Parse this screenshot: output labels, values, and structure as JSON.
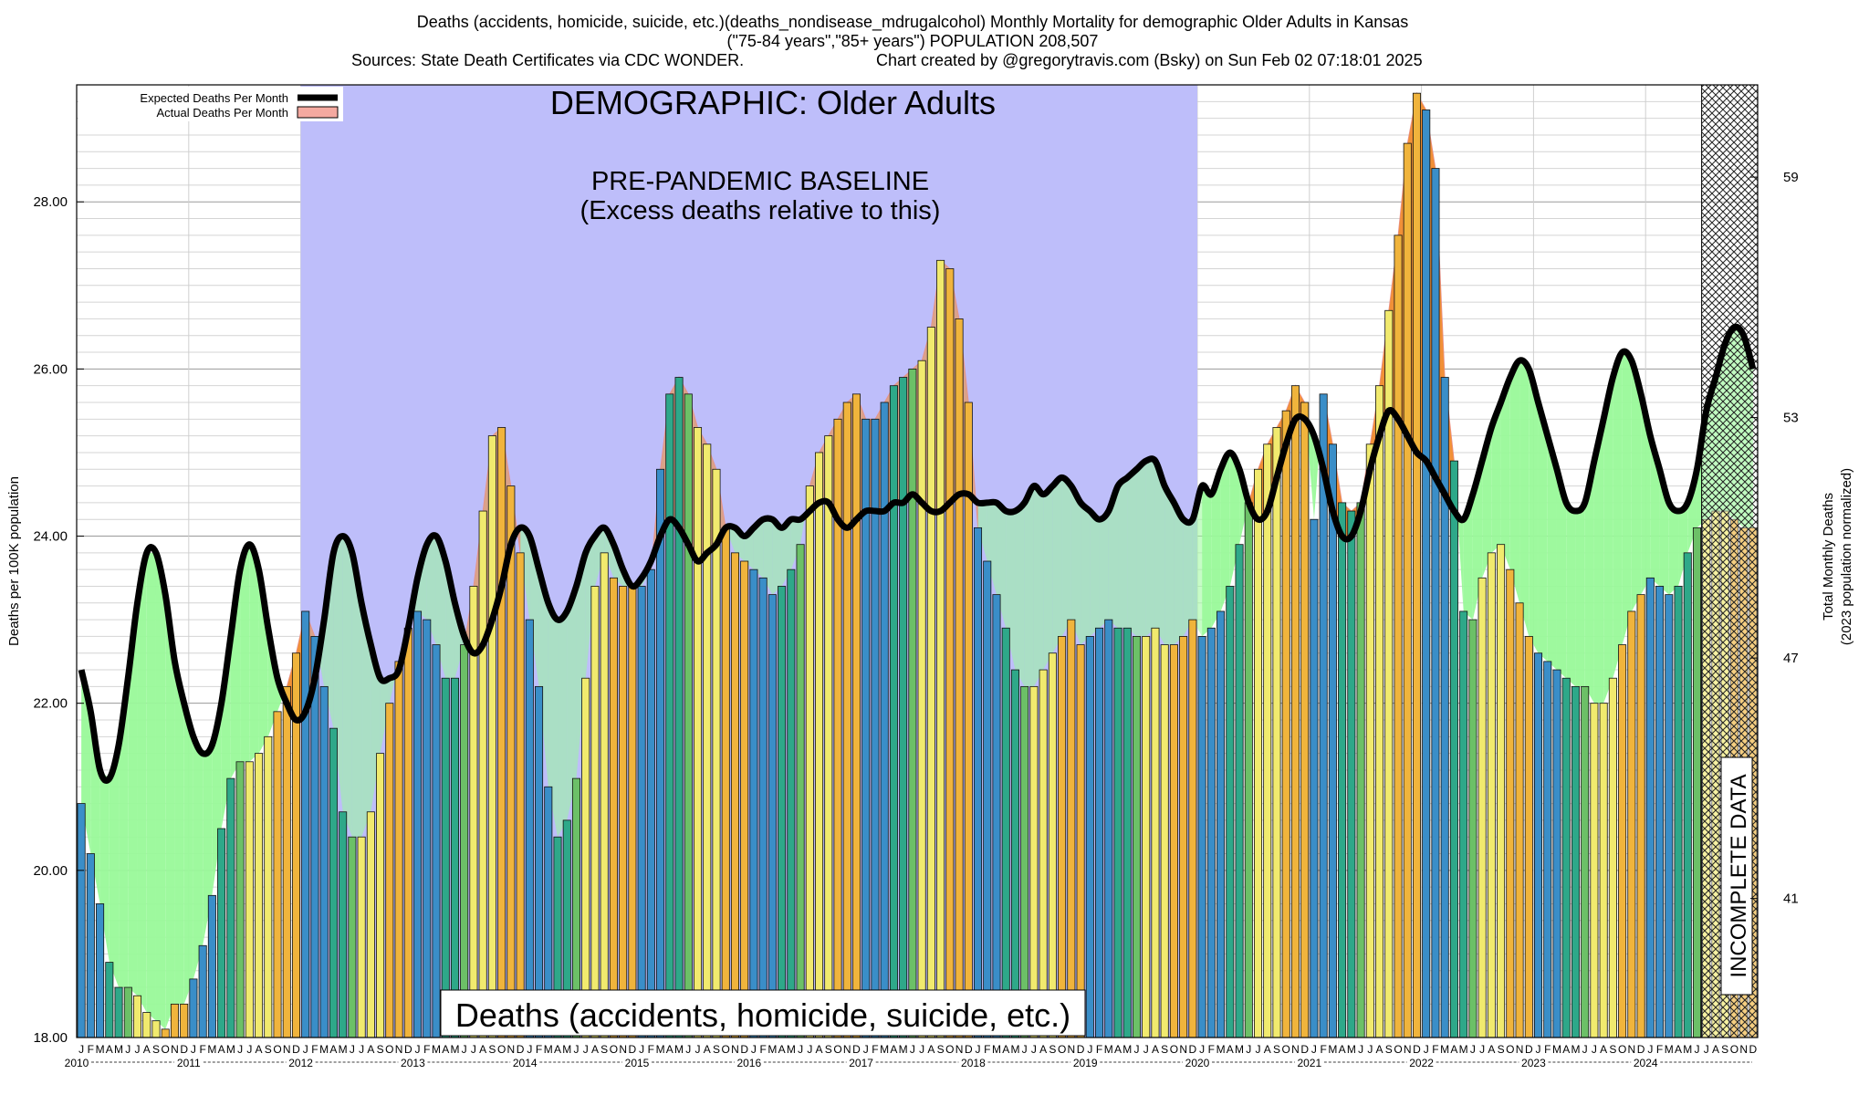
{
  "header": {
    "title_line1": "Deaths (accidents, homicide, suicide, etc.)(deaths_nondisease_mdrugalcohol) Monthly Mortality for demographic Older Adults in Kansas",
    "title_line2": "(\"75-84 years\",\"85+ years\") POPULATION 208,507",
    "title_line3_left": "Sources: State Death Certificates via CDC WONDER.",
    "title_line3_right": "Chart created by @gregorytravis.com (Bsky) on Sun Feb 02 07:18:01 2025"
  },
  "annotations": {
    "demographic": "DEMOGRAPHIC: Older Adults",
    "baseline_line1": "PRE-PANDEMIC BASELINE",
    "baseline_line2": "(Excess deaths relative to this)",
    "bottom_label": "Deaths (accidents, homicide, suicide, etc.)",
    "incomplete": "INCOMPLETE DATA"
  },
  "legend": {
    "expected_label": "Expected Deaths Per Month",
    "actual_label": "Actual Deaths Per Month"
  },
  "axes": {
    "ylabel_left": "Deaths per 100K population",
    "ylabel_right_line1": "Total Monthly Deaths",
    "ylabel_right_line2": "(2023 population normalized)"
  },
  "colors": {
    "baseline_region": "#bebefa",
    "deficit_fill": "#99f999",
    "excess_fill": "#f08a2c",
    "expected_line": "#000000",
    "bar_blue": "#3a8ec8",
    "bar_teal": "#2ea889",
    "bar_green": "#6cc067",
    "bar_yellow": "#f1ea6e",
    "bar_orange": "#f0b43c"
  },
  "chart_data": {
    "type": "bar",
    "title": "Deaths (accidents, homicide, suicide, etc.)(deaths_nondisease_mdrugalcohol) Monthly Mortality for demographic Older Adults in Kansas",
    "ylabel": "Deaths per 100K population",
    "ylabel_right": "Total Monthly Deaths (2023 population normalized)",
    "ylim": [
      18,
      29.4
    ],
    "yticks": [
      "18.00",
      "20.00",
      "22.00",
      "24.00",
      "26.00",
      "28.00"
    ],
    "y2ticks": [
      "41",
      "47",
      "53",
      "59"
    ],
    "x_start": "2010-01",
    "years": [
      "2010",
      "2011",
      "2012",
      "2013",
      "2014",
      "2015",
      "2016",
      "2017",
      "2018",
      "2019",
      "2020",
      "2021",
      "2022",
      "2023",
      "2024"
    ],
    "month_letters": [
      "J",
      "F",
      "M",
      "A",
      "M",
      "J",
      "J",
      "A",
      "S",
      "O",
      "N",
      "D"
    ],
    "baseline_period": [
      "2012-01",
      "2019-12"
    ],
    "incomplete_from": "2024-07",
    "legend_position": "top-left",
    "grid": true,
    "series": [
      {
        "name": "Actual Deaths Per Month",
        "values": [
          20.8,
          20.2,
          19.6,
          18.9,
          18.6,
          18.6,
          18.5,
          18.3,
          18.2,
          18.1,
          18.4,
          18.4,
          18.7,
          19.1,
          19.7,
          20.5,
          21.1,
          21.3,
          21.3,
          21.4,
          21.6,
          21.9,
          22.2,
          22.6,
          23.1,
          22.8,
          22.2,
          21.7,
          20.7,
          20.4,
          20.4,
          20.7,
          21.4,
          22.0,
          22.5,
          22.9,
          23.1,
          23.0,
          22.7,
          22.3,
          22.3,
          22.7,
          23.4,
          24.3,
          25.2,
          25.3,
          24.6,
          23.8,
          23.0,
          22.2,
          21.0,
          20.4,
          20.6,
          21.1,
          22.3,
          23.4,
          23.8,
          23.5,
          23.4,
          23.4,
          23.4,
          23.6,
          24.8,
          25.7,
          25.9,
          25.7,
          25.3,
          25.1,
          24.8,
          24.1,
          23.8,
          23.7,
          23.6,
          23.5,
          23.3,
          23.4,
          23.6,
          23.9,
          24.6,
          25.0,
          25.2,
          25.4,
          25.6,
          25.7,
          25.4,
          25.4,
          25.6,
          25.8,
          25.9,
          26.0,
          26.1,
          26.5,
          27.3,
          27.2,
          26.6,
          25.6,
          24.1,
          23.7,
          23.3,
          22.9,
          22.4,
          22.2,
          22.2,
          22.4,
          22.6,
          22.8,
          23.0,
          22.7,
          22.8,
          22.9,
          23.0,
          22.9,
          22.9,
          22.8,
          22.8,
          22.9,
          22.7,
          22.7,
          22.8,
          23.0,
          22.8,
          22.9,
          23.1,
          23.4,
          23.9,
          24.4,
          24.8,
          25.1,
          25.3,
          25.5,
          25.8,
          25.6,
          24.2,
          25.7,
          25.1,
          24.4,
          24.3,
          24.4,
          25.1,
          25.8,
          26.7,
          27.6,
          28.7,
          29.3,
          29.1,
          28.4,
          25.9,
          24.9,
          23.1,
          23.0,
          23.5,
          23.8,
          23.9,
          23.6,
          23.2,
          22.8,
          22.6,
          22.5,
          22.4,
          22.3,
          22.2,
          22.2,
          22.0,
          22.0,
          22.3,
          22.7,
          23.1,
          23.3,
          23.5,
          23.4,
          23.3,
          23.4,
          23.8,
          24.1,
          24.2,
          24.3,
          24.3,
          24.2,
          24.1,
          24.1
        ]
      },
      {
        "name": "Expected Deaths Per Month",
        "values": [
          22.4,
          21.9,
          21.2,
          21.1,
          21.5,
          22.3,
          23.2,
          23.8,
          23.8,
          23.3,
          22.5,
          22.0,
          21.6,
          21.4,
          21.5,
          22.0,
          22.8,
          23.6,
          23.9,
          23.6,
          22.9,
          22.3,
          22.0,
          21.8,
          21.9,
          22.3,
          23.0,
          23.8,
          24.0,
          23.8,
          23.2,
          22.7,
          22.3,
          22.3,
          22.4,
          22.9,
          23.5,
          23.9,
          24.0,
          23.7,
          23.2,
          22.8,
          22.6,
          22.7,
          23.0,
          23.4,
          23.9,
          24.1,
          24.0,
          23.6,
          23.2,
          23.0,
          23.1,
          23.4,
          23.8,
          24.0,
          24.1,
          23.9,
          23.6,
          23.4,
          23.5,
          23.7,
          24.0,
          24.2,
          24.1,
          23.9,
          23.7,
          23.8,
          23.9,
          24.1,
          24.1,
          24.0,
          24.1,
          24.2,
          24.2,
          24.1,
          24.2,
          24.2,
          24.3,
          24.4,
          24.4,
          24.2,
          24.1,
          24.2,
          24.3,
          24.3,
          24.3,
          24.4,
          24.4,
          24.5,
          24.4,
          24.3,
          24.3,
          24.4,
          24.5,
          24.5,
          24.4,
          24.4,
          24.4,
          24.3,
          24.3,
          24.4,
          24.6,
          24.5,
          24.6,
          24.7,
          24.6,
          24.4,
          24.3,
          24.2,
          24.3,
          24.6,
          24.7,
          24.8,
          24.9,
          24.9,
          24.6,
          24.4,
          24.2,
          24.2,
          24.6,
          24.5,
          24.8,
          25.0,
          24.8,
          24.4,
          24.2,
          24.3,
          24.7,
          25.1,
          25.4,
          25.4,
          25.2,
          24.8,
          24.3,
          24.0,
          24.0,
          24.3,
          24.8,
          25.2,
          25.5,
          25.4,
          25.2,
          25.0,
          24.9,
          24.7,
          24.5,
          24.3,
          24.2,
          24.5,
          24.9,
          25.3,
          25.6,
          25.9,
          26.1,
          26.0,
          25.6,
          25.2,
          24.8,
          24.4,
          24.3,
          24.4,
          24.9,
          25.4,
          25.9,
          26.2,
          26.1,
          25.7,
          25.2,
          24.8,
          24.4,
          24.3,
          24.4,
          24.8,
          25.5,
          25.9,
          26.3,
          26.5,
          26.4,
          26.0
        ]
      }
    ]
  }
}
